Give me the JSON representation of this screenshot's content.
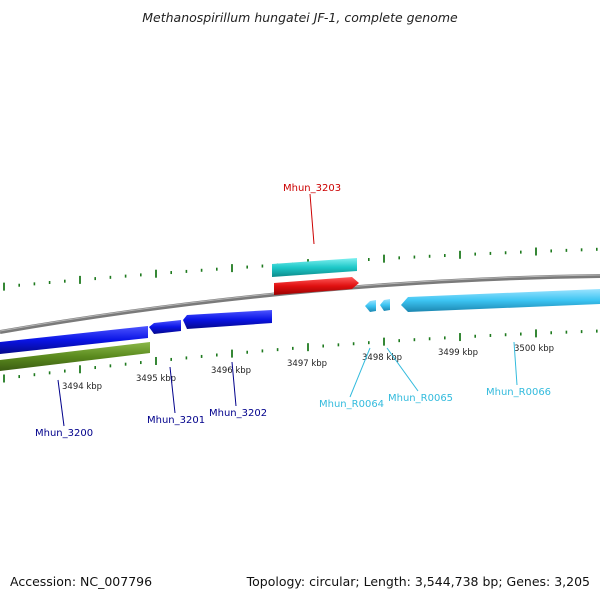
{
  "title": "Methanospirillum hungatei JF-1, complete genome",
  "footer": {
    "accession": "Accession: NC_007796",
    "topology": "Topology: circular; Length: 3,544,738 bp; Genes: 3,205"
  },
  "colors": {
    "background": "#ffffff",
    "backbone": "#808080",
    "ticks": "#1f7a1f",
    "red_gene": "#dd1111",
    "cyan_gene": "#1ec8c8",
    "blue_gene": "#0a14e6",
    "olive_gene": "#5a8a1e",
    "light_blue_gene": "#3cc4f2",
    "label_red": "#cc0000",
    "label_blue": "#00008b",
    "label_cyan": "#33bbdd"
  },
  "scale_labels": [
    "3494 kbp",
    "3495 kbp",
    "3496 kbp",
    "3497 kbp",
    "3498 kbp",
    "3499 kbp",
    "3500 kbp"
  ],
  "genes": [
    {
      "name": "Mhun_3200",
      "color": "blue"
    },
    {
      "name": "Mhun_3201",
      "color": "blue"
    },
    {
      "name": "Mhun_3202",
      "color": "blue"
    },
    {
      "name": "Mhun_3203",
      "color": "red"
    },
    {
      "name": "Mhun_R0064",
      "color": "cyan"
    },
    {
      "name": "Mhun_R0065",
      "color": "cyan"
    },
    {
      "name": "Mhun_R0066",
      "color": "cyan"
    }
  ]
}
